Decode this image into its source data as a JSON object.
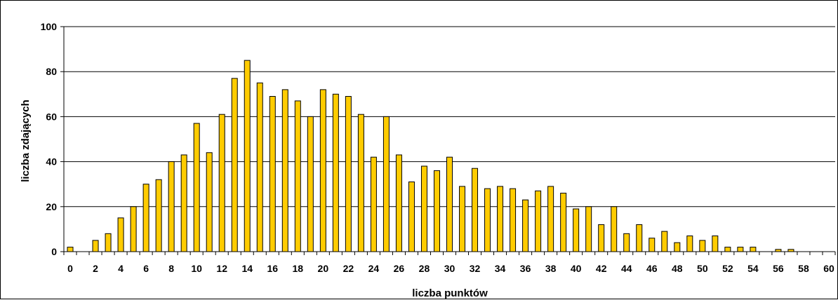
{
  "colors": {
    "bar_fill": "#FFCC00",
    "bar_stroke": "#000000",
    "grid": "#000000",
    "background": "#FFFFFF"
  },
  "chart_data": {
    "type": "bar",
    "title": "",
    "xlabel": "liczba punktów",
    "ylabel": "liczba zdających",
    "x": [
      0,
      1,
      2,
      3,
      4,
      5,
      6,
      7,
      8,
      9,
      10,
      11,
      12,
      13,
      14,
      15,
      16,
      17,
      18,
      19,
      20,
      21,
      22,
      23,
      24,
      25,
      26,
      27,
      28,
      29,
      30,
      31,
      32,
      33,
      34,
      35,
      36,
      37,
      38,
      39,
      40,
      41,
      42,
      43,
      44,
      45,
      46,
      47,
      48,
      49,
      50,
      51,
      52,
      53,
      54,
      55,
      56,
      57,
      58,
      59,
      60
    ],
    "values": [
      2,
      0,
      5,
      8,
      15,
      20,
      30,
      32,
      40,
      43,
      57,
      44,
      61,
      77,
      85,
      75,
      69,
      72,
      67,
      60,
      72,
      70,
      69,
      61,
      42,
      60,
      43,
      31,
      38,
      36,
      42,
      29,
      37,
      28,
      29,
      28,
      23,
      27,
      29,
      26,
      19,
      20,
      12,
      20,
      8,
      12,
      6,
      9,
      4,
      7,
      5,
      7,
      2,
      2,
      2,
      0,
      1,
      1,
      0,
      0,
      0
    ],
    "xticks": [
      "0",
      "2",
      "4",
      "6",
      "8",
      "10",
      "12",
      "14",
      "16",
      "18",
      "20",
      "22",
      "24",
      "26",
      "28",
      "30",
      "32",
      "34",
      "36",
      "38",
      "40",
      "42",
      "44",
      "46",
      "48",
      "50",
      "52",
      "54",
      "56",
      "58",
      "60"
    ],
    "yticks": [
      "0",
      "20",
      "40",
      "60",
      "80",
      "100"
    ],
    "ylim": [
      0,
      100
    ],
    "xlim": [
      0,
      60
    ],
    "grid": "horizontal",
    "legend": "none"
  }
}
